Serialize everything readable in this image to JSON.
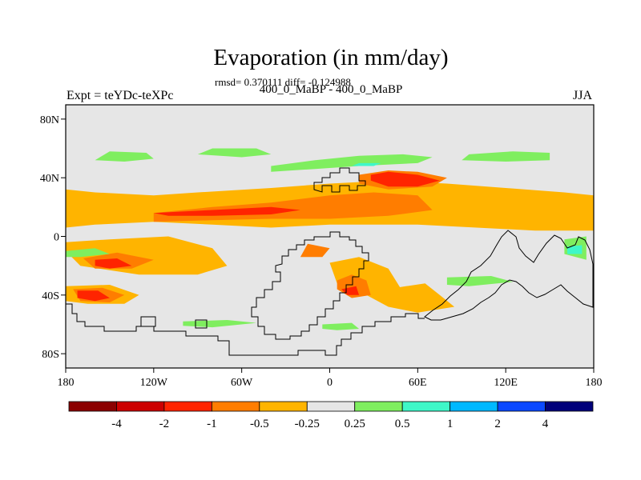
{
  "plot": {
    "title": "Evaporation (in mm/day)",
    "stats_line": "rmsd= 0.370111 diff= -0.124988",
    "subtitle": "400_0_MaBP - 400_0_MaBP",
    "left_label": "Expt = teYDc-teXPc",
    "right_label": "JJA"
  },
  "axes": {
    "lat_ticks": [
      {
        "value": 80,
        "label": "80N"
      },
      {
        "value": 40,
        "label": "40N"
      },
      {
        "value": 0,
        "label": "0"
      },
      {
        "value": -40,
        "label": "40S"
      },
      {
        "value": -80,
        "label": "80S"
      }
    ],
    "lon_ticks": [
      {
        "value": -180,
        "label": "180"
      },
      {
        "value": -120,
        "label": "120W"
      },
      {
        "value": -60,
        "label": "60W"
      },
      {
        "value": 0,
        "label": "0"
      },
      {
        "value": 60,
        "label": "60E"
      },
      {
        "value": 120,
        "label": "120E"
      },
      {
        "value": 180,
        "label": "180"
      }
    ],
    "lon_range": [
      -180,
      180
    ],
    "lat_range": [
      -90,
      90
    ]
  },
  "colorbar": {
    "colors": [
      "#8b0000",
      "#cc0000",
      "#ff2400",
      "#ff7d00",
      "#ffb400",
      "#e6e6e6",
      "#7fee5f",
      "#3ff7c8",
      "#00b8ff",
      "#0a48ff",
      "#00007a"
    ],
    "labels": [
      "-4",
      "-2",
      "-1",
      "-0.5",
      "-0.25",
      "0.25",
      "0.5",
      "1",
      "2",
      "4"
    ]
  },
  "chart_data": {
    "type": "heatmap",
    "title": "Evaporation (in mm/day)",
    "subtitle": "400_0_MaBP - 400_0_MaBP",
    "variable": "Evaporation difference",
    "units": "mm/day",
    "season": "JJA",
    "xlabel": "",
    "ylabel": "",
    "xlim": [
      -180,
      180
    ],
    "ylim": [
      -90,
      90
    ],
    "levels": [
      -4,
      -2,
      -1,
      -0.5,
      -0.25,
      0.25,
      0.5,
      1,
      2,
      4
    ],
    "background_level": 5,
    "regions": [
      {
        "level": 4,
        "lon": [
          -180,
          -160,
          -120,
          -90,
          -40,
          0,
          40,
          80,
          120,
          160,
          180,
          180,
          140,
          100,
          60,
          30,
          0,
          -40,
          -80,
          -120,
          -160,
          -180
        ],
        "lat": [
          32,
          30,
          28,
          30,
          33,
          36,
          38,
          36,
          33,
          30,
          28,
          4,
          4,
          6,
          8,
          8,
          8,
          6,
          8,
          10,
          8,
          6
        ]
      },
      {
        "level": 4,
        "lon": [
          -180,
          -150,
          -110,
          -80,
          -70,
          -90,
          -130,
          -170,
          -180
        ],
        "lat": [
          -4,
          -2,
          0,
          -8,
          -20,
          -26,
          -26,
          -20,
          -10
        ]
      },
      {
        "level": 4,
        "lon": [
          -180,
          -150,
          -130,
          -140,
          -165,
          -180
        ],
        "lat": [
          -34,
          -33,
          -40,
          -46,
          -46,
          -44
        ]
      },
      {
        "level": 4,
        "lon": [
          0,
          20,
          40,
          50,
          30,
          5
        ],
        "lat": [
          -18,
          -14,
          -22,
          -38,
          -40,
          -32
        ]
      },
      {
        "level": 4,
        "lon": [
          20,
          45,
          65,
          75,
          85,
          60,
          40,
          25
        ],
        "lat": [
          -30,
          -35,
          -32,
          -40,
          -48,
          -52,
          -48,
          -40
        ]
      },
      {
        "level": 4,
        "lon": [
          -145,
          -120,
          -100,
          -105,
          -125,
          -140
        ],
        "lat": [
          -3,
          -2,
          -8,
          -14,
          -14,
          -10
        ]
      },
      {
        "level": 3,
        "lon": [
          -120,
          -80,
          -40,
          0,
          30,
          60,
          70,
          40,
          0,
          -40,
          -80,
          -120
        ],
        "lat": [
          16,
          20,
          23,
          28,
          30,
          28,
          18,
          14,
          12,
          12,
          11,
          10
        ]
      },
      {
        "level": 3,
        "lon": [
          20,
          40,
          60,
          80,
          70,
          40,
          20
        ],
        "lat": [
          42,
          45,
          44,
          40,
          34,
          32,
          36
        ]
      },
      {
        "level": 3,
        "lon": [
          -168,
          -145,
          -120,
          -135,
          -160
        ],
        "lat": [
          -15,
          -11,
          -16,
          -22,
          -22
        ]
      },
      {
        "level": 3,
        "lon": [
          -175,
          -155,
          -140,
          -150,
          -170
        ],
        "lat": [
          -36,
          -35,
          -40,
          -45,
          -44
        ]
      },
      {
        "level": 3,
        "lon": [
          5,
          15,
          25,
          28,
          15,
          5
        ],
        "lat": [
          -30,
          -26,
          -30,
          -40,
          -42,
          -36
        ]
      },
      {
        "level": 3,
        "lon": [
          -15,
          0,
          -5,
          -20
        ],
        "lat": [
          -5,
          -8,
          -14,
          -14
        ]
      },
      {
        "level": 2,
        "lon": [
          -120,
          -80,
          -40,
          -20,
          -40,
          -80,
          -110
        ],
        "lat": [
          16,
          18,
          20,
          18,
          15,
          14,
          14
        ]
      },
      {
        "level": 2,
        "lon": [
          28,
          40,
          60,
          75,
          60,
          40,
          28
        ],
        "lat": [
          42,
          44,
          42,
          38,
          34,
          34,
          38
        ]
      },
      {
        "level": 2,
        "lon": [
          -160,
          -145,
          -135,
          -150,
          -160
        ],
        "lat": [
          -16,
          -15,
          -20,
          -22,
          -20
        ]
      },
      {
        "level": 2,
        "lon": [
          -172,
          -158,
          -150,
          -160,
          -172
        ],
        "lat": [
          -37,
          -37,
          -42,
          -44,
          -42
        ]
      },
      {
        "level": 2,
        "lon": [
          8,
          18,
          20,
          12
        ],
        "lat": [
          -36,
          -34,
          -40,
          -40
        ]
      },
      {
        "level": 6,
        "lon": [
          -160,
          -140,
          -120,
          -125,
          -150
        ],
        "lat": [
          52,
          51,
          53,
          57,
          58
        ]
      },
      {
        "level": 6,
        "lon": [
          -40,
          -10,
          20,
          60,
          70,
          50,
          20,
          -10,
          -40
        ],
        "lat": [
          44,
          46,
          48,
          50,
          54,
          56,
          55,
          52,
          48
        ]
      },
      {
        "level": 6,
        "lon": [
          90,
          120,
          150,
          150,
          125,
          95
        ],
        "lat": [
          52,
          51,
          52,
          57,
          58,
          56
        ]
      },
      {
        "level": 6,
        "lon": [
          -90,
          -60,
          -40,
          -50,
          -80
        ],
        "lat": [
          56,
          54,
          56,
          60,
          60
        ]
      },
      {
        "level": 6,
        "lon": [
          -180,
          -160,
          -150,
          -170,
          -180
        ],
        "lat": [
          -10,
          -8,
          -12,
          -14,
          -14
        ]
      },
      {
        "level": 6,
        "lon": [
          -100,
          -70,
          -50,
          -80,
          -100
        ],
        "lat": [
          -58,
          -57,
          -59,
          -62,
          -61
        ]
      },
      {
        "level": 6,
        "lon": [
          80,
          110,
          125,
          95,
          80
        ],
        "lat": [
          -28,
          -27,
          -31,
          -34,
          -33
        ]
      },
      {
        "level": 6,
        "lon": [
          -5,
          15,
          20,
          5,
          -5
        ],
        "lat": [
          -60,
          -59,
          -63,
          -64,
          -63
        ]
      },
      {
        "level": 6,
        "lon": [
          160,
          175,
          175,
          160
        ],
        "lat": [
          -2,
          0,
          -16,
          -12
        ]
      },
      {
        "level": 7,
        "lon": [
          15,
          30,
          35,
          20
        ],
        "lat": [
          48,
          48,
          50,
          50
        ]
      },
      {
        "level": 7,
        "lon": [
          162,
          172,
          172,
          162
        ],
        "lat": [
          -7,
          -6,
          -12,
          -12
        ]
      }
    ]
  }
}
